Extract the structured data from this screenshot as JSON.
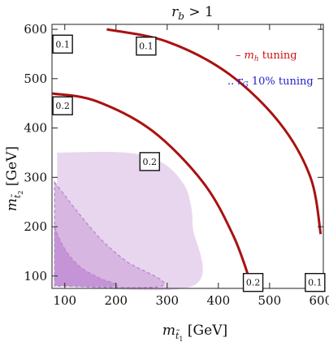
{
  "chart_data": {
    "type": "line",
    "title": "r_b > 1",
    "title_parts": {
      "main": "r",
      "sub": "b",
      "rest": " > 1"
    },
    "xlabel_parts": {
      "main": "m",
      "sub": "t̃",
      "subsub": "1",
      "unit": " [GeV]"
    },
    "ylabel_parts": {
      "main": "m",
      "sub": "t̃",
      "subsub": "2",
      "unit": " [GeV]"
    },
    "xlim": [
      75,
      605
    ],
    "ylim": [
      75,
      610
    ],
    "xticks": [
      100,
      200,
      300,
      400,
      500,
      600
    ],
    "yticks": [
      100,
      200,
      300,
      400,
      500,
      600
    ],
    "legend": [
      {
        "marker": "–",
        "text_main": "m",
        "text_sub": "h",
        "text_rest": " tuning",
        "color": "#cc1111"
      },
      {
        "marker": "..",
        "text_main": "r",
        "text_sub": "G",
        "text_rest": " 10% tuning",
        "color": "#2222cc"
      }
    ],
    "contours": [
      {
        "label": "0.1",
        "color": "#aa1111",
        "points": [
          [
            182,
            600
          ],
          [
            300,
            575
          ],
          [
            420,
            510
          ],
          [
            520,
            410
          ],
          [
            580,
            300
          ],
          [
            600,
            185
          ]
        ]
      },
      {
        "label": "0.2",
        "color": "#aa1111",
        "points": [
          [
            75,
            470
          ],
          [
            160,
            455
          ],
          [
            270,
            395
          ],
          [
            370,
            290
          ],
          [
            430,
            180
          ],
          [
            465,
            80
          ]
        ]
      }
    ],
    "contour_labels": [
      {
        "text": "0.1",
        "x": 80,
        "y": 570
      },
      {
        "text": "0.1",
        "x": 243,
        "y": 566
      },
      {
        "text": "0.2",
        "x": 80,
        "y": 445
      },
      {
        "text": "0.2",
        "x": 250,
        "y": 332
      },
      {
        "text": "0.2",
        "x": 452,
        "y": 87
      },
      {
        "text": "0.1",
        "x": 573,
        "y": 87
      }
    ],
    "regions": [
      {
        "name": "rG light",
        "fill": "#e8d6ee",
        "points": [
          [
            85,
            350
          ],
          [
            220,
            350
          ],
          [
            290,
            330
          ],
          [
            330,
            290
          ],
          [
            345,
            250
          ],
          [
            350,
            200
          ],
          [
            350,
            80
          ],
          [
            85,
            80
          ]
        ]
      },
      {
        "name": "rG medium",
        "fill": "#d8b6e2",
        "points": [
          [
            80,
            290
          ],
          [
            95,
            270
          ],
          [
            125,
            230
          ],
          [
            170,
            175
          ],
          [
            220,
            130
          ],
          [
            290,
            80
          ],
          [
            80,
            80
          ]
        ]
      },
      {
        "name": "rG dark",
        "fill": "#c594d6",
        "points": [
          [
            80,
            200
          ],
          [
            92,
            170
          ],
          [
            110,
            140
          ],
          [
            135,
            115
          ],
          [
            170,
            95
          ],
          [
            200,
            80
          ],
          [
            80,
            80
          ]
        ]
      }
    ]
  }
}
